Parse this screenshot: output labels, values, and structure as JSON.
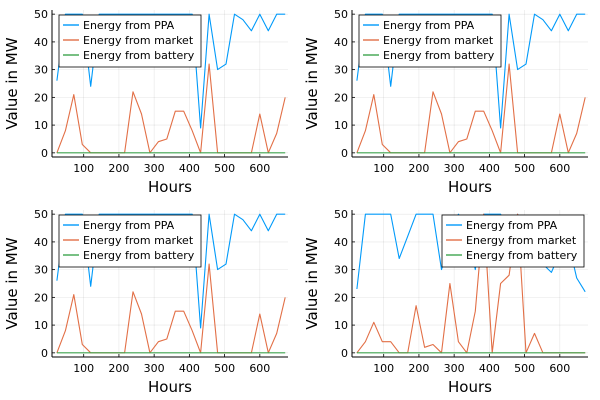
{
  "chart_data": [
    {
      "type": "line",
      "xlabel": "Hours",
      "ylabel": "Value in MW",
      "xlim": [
        10,
        680
      ],
      "ylim": [
        -1.5,
        51.5
      ],
      "xticks": [
        100,
        200,
        300,
        400,
        500,
        600
      ],
      "yticks": [
        0,
        10,
        20,
        30,
        40,
        50
      ],
      "grid": true,
      "legend_position": "top-left",
      "series": [
        {
          "name": "Energy from PPA",
          "color": "#009AFA",
          "x": [
            24,
            48,
            72,
            96,
            120,
            144,
            168,
            192,
            216,
            240,
            264,
            288,
            312,
            336,
            360,
            384,
            408,
            432,
            456,
            480,
            504,
            528,
            552,
            576,
            600,
            624,
            648,
            672
          ],
          "y": [
            26,
            50,
            50,
            50,
            24,
            50,
            50,
            50,
            50,
            50,
            50,
            50,
            50,
            50,
            50,
            50,
            50,
            9,
            50,
            30,
            32,
            50,
            48,
            44,
            50,
            44,
            50,
            50
          ]
        },
        {
          "name": "Energy from market",
          "color": "#E26F46",
          "x": [
            24,
            48,
            72,
            96,
            120,
            144,
            168,
            192,
            216,
            240,
            264,
            288,
            312,
            336,
            360,
            384,
            408,
            432,
            456,
            480,
            504,
            528,
            552,
            576,
            600,
            624,
            648,
            672
          ],
          "y": [
            0,
            8,
            21,
            3,
            0,
            0,
            0,
            0,
            0,
            22,
            14,
            0,
            4,
            5,
            15,
            15,
            8,
            0,
            32,
            0,
            0,
            0,
            0,
            0,
            14,
            0,
            7,
            20
          ]
        },
        {
          "name": "Energy from battery",
          "color": "#3EA44E",
          "x": [
            24,
            672
          ],
          "y": [
            0,
            0
          ]
        }
      ]
    },
    {
      "type": "line",
      "xlabel": "Hours",
      "ylabel": "Value in MW",
      "xlim": [
        10,
        680
      ],
      "ylim": [
        -1.5,
        51.5
      ],
      "xticks": [
        100,
        200,
        300,
        400,
        500,
        600
      ],
      "yticks": [
        0,
        10,
        20,
        30,
        40,
        50
      ],
      "grid": true,
      "legend_position": "top-left",
      "series": [
        {
          "name": "Energy from PPA",
          "color": "#009AFA",
          "x": [
            24,
            48,
            72,
            96,
            120,
            144,
            168,
            192,
            216,
            240,
            264,
            288,
            312,
            336,
            360,
            384,
            408,
            432,
            456,
            480,
            504,
            528,
            552,
            576,
            600,
            624,
            648,
            672
          ],
          "y": [
            26,
            50,
            50,
            50,
            24,
            50,
            50,
            50,
            50,
            50,
            50,
            50,
            50,
            50,
            50,
            50,
            50,
            9,
            50,
            30,
            32,
            50,
            48,
            44,
            50,
            44,
            50,
            50
          ]
        },
        {
          "name": "Energy from market",
          "color": "#E26F46",
          "x": [
            24,
            48,
            72,
            96,
            120,
            144,
            168,
            192,
            216,
            240,
            264,
            288,
            312,
            336,
            360,
            384,
            408,
            432,
            456,
            480,
            504,
            528,
            552,
            576,
            600,
            624,
            648,
            672
          ],
          "y": [
            0,
            8,
            21,
            3,
            0,
            0,
            0,
            0,
            0,
            22,
            14,
            0,
            4,
            5,
            15,
            15,
            8,
            0,
            32,
            0,
            0,
            0,
            0,
            0,
            14,
            0,
            7,
            20
          ]
        },
        {
          "name": "Energy from battery",
          "color": "#3EA44E",
          "x": [
            24,
            672
          ],
          "y": [
            0,
            0
          ]
        }
      ]
    },
    {
      "type": "line",
      "xlabel": "Hours",
      "ylabel": "Value in MW",
      "xlim": [
        10,
        680
      ],
      "ylim": [
        -1.5,
        51.5
      ],
      "xticks": [
        100,
        200,
        300,
        400,
        500,
        600
      ],
      "yticks": [
        0,
        10,
        20,
        30,
        40,
        50
      ],
      "grid": true,
      "legend_position": "top-left",
      "series": [
        {
          "name": "Energy from PPA",
          "color": "#009AFA",
          "x": [
            24,
            48,
            72,
            96,
            120,
            144,
            168,
            192,
            216,
            240,
            264,
            288,
            312,
            336,
            360,
            384,
            408,
            432,
            456,
            480,
            504,
            528,
            552,
            576,
            600,
            624,
            648,
            672
          ],
          "y": [
            26,
            50,
            50,
            50,
            24,
            50,
            50,
            50,
            50,
            50,
            50,
            50,
            50,
            50,
            50,
            50,
            50,
            9,
            50,
            30,
            32,
            50,
            48,
            44,
            50,
            44,
            50,
            50
          ]
        },
        {
          "name": "Energy from market",
          "color": "#E26F46",
          "x": [
            24,
            48,
            72,
            96,
            120,
            144,
            168,
            192,
            216,
            240,
            264,
            288,
            312,
            336,
            360,
            384,
            408,
            432,
            456,
            480,
            504,
            528,
            552,
            576,
            600,
            624,
            648,
            672
          ],
          "y": [
            0,
            8,
            21,
            3,
            0,
            0,
            0,
            0,
            0,
            22,
            14,
            0,
            4,
            5,
            15,
            15,
            8,
            0,
            32,
            0,
            0,
            0,
            0,
            0,
            14,
            0,
            7,
            20
          ]
        },
        {
          "name": "Energy from battery",
          "color": "#3EA44E",
          "x": [
            24,
            672
          ],
          "y": [
            0,
            0
          ]
        }
      ]
    },
    {
      "type": "line",
      "xlabel": "Hours",
      "ylabel": "Value in MW",
      "xlim": [
        10,
        680
      ],
      "ylim": [
        -1.5,
        51.5
      ],
      "xticks": [
        100,
        200,
        300,
        400,
        500,
        600
      ],
      "yticks": [
        0,
        10,
        20,
        30,
        40,
        50
      ],
      "grid": true,
      "legend_position": "top-right",
      "series": [
        {
          "name": "Energy from PPA",
          "color": "#009AFA",
          "x": [
            24,
            48,
            72,
            96,
            120,
            144,
            168,
            192,
            216,
            240,
            264,
            288,
            312,
            336,
            360,
            384,
            408,
            432,
            456,
            480,
            504,
            528,
            552,
            576,
            600,
            624,
            648,
            672
          ],
          "y": [
            23,
            50,
            50,
            50,
            50,
            34,
            42,
            50,
            50,
            50,
            30,
            40,
            50,
            46,
            30,
            50,
            50,
            50,
            44,
            50,
            40,
            36,
            32,
            29,
            36,
            40,
            27,
            22
          ]
        },
        {
          "name": "Energy from market",
          "color": "#E26F46",
          "x": [
            24,
            48,
            72,
            96,
            120,
            144,
            168,
            192,
            216,
            240,
            264,
            288,
            312,
            336,
            360,
            384,
            408,
            432,
            456,
            480,
            504,
            528,
            552,
            576,
            600,
            624,
            648,
            672
          ],
          "y": [
            0,
            4,
            11,
            4,
            4,
            0,
            0,
            17,
            2,
            3,
            0,
            25,
            4,
            0,
            15,
            50,
            0,
            25,
            28,
            50,
            0,
            7,
            0,
            0,
            0,
            0,
            0,
            0
          ]
        },
        {
          "name": "Energy from battery",
          "color": "#3EA44E",
          "x": [
            24,
            672
          ],
          "y": [
            0,
            0
          ]
        }
      ]
    }
  ]
}
